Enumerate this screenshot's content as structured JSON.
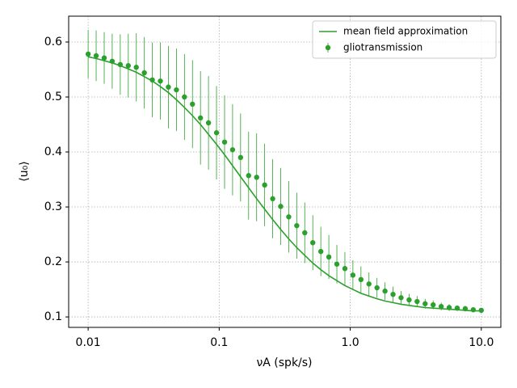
{
  "chart_data": {
    "type": "line",
    "xlabel": "νA (spk/s)",
    "ylabel": "⟨u₀⟩",
    "xscale": "log",
    "xlim": [
      0.0071,
      14.1
    ],
    "ylim": [
      0.081,
      0.647
    ],
    "xticks": [
      0.01,
      0.1,
      {
        "value": 1,
        "label": "1.0"
      },
      {
        "value": 10,
        "label": "10.0"
      }
    ],
    "yticks": [
      0.1,
      0.2,
      0.3,
      0.4,
      0.5,
      0.6
    ],
    "grid": true,
    "legend": "upper right",
    "x": [
      0.01,
      0.01151,
      0.01326,
      0.01526,
      0.01758,
      0.02024,
      0.0233,
      0.02683,
      0.03089,
      0.03556,
      0.04095,
      0.04715,
      0.05429,
      0.06251,
      0.07197,
      0.08286,
      0.09541,
      0.1099,
      0.1265,
      0.1456,
      0.1677,
      0.1931,
      0.2223,
      0.256,
      0.2947,
      0.3393,
      0.3907,
      0.4498,
      0.5179,
      0.5964,
      0.6866,
      0.7906,
      0.9103,
      1.048,
      1.207,
      1.389,
      1.6,
      1.842,
      2.121,
      2.442,
      2.812,
      3.237,
      3.728,
      4.292,
      4.942,
      5.69,
      6.551,
      7.543,
      8.685,
      10
    ],
    "series": [
      {
        "name": "mean field approximation",
        "kind": "line",
        "color": "#2ca02c",
        "values": [
          0.573,
          0.57,
          0.566,
          0.562,
          0.557,
          0.551,
          0.545,
          0.537,
          0.529,
          0.519,
          0.508,
          0.495,
          0.481,
          0.466,
          0.45,
          0.432,
          0.414,
          0.395,
          0.375,
          0.355,
          0.335,
          0.315,
          0.296,
          0.277,
          0.259,
          0.242,
          0.226,
          0.212,
          0.198,
          0.186,
          0.175,
          0.166,
          0.157,
          0.15,
          0.143,
          0.138,
          0.133,
          0.129,
          0.126,
          0.123,
          0.121,
          0.119,
          0.117,
          0.116,
          0.115,
          0.114,
          0.113,
          0.112,
          0.111,
          0.111
        ]
      },
      {
        "name": "gliotransmission",
        "kind": "errorbar",
        "color": "#2ca02c",
        "values": [
          0.578,
          0.575,
          0.571,
          0.565,
          0.559,
          0.557,
          0.554,
          0.544,
          0.531,
          0.529,
          0.518,
          0.513,
          0.5,
          0.487,
          0.462,
          0.453,
          0.435,
          0.418,
          0.404,
          0.39,
          0.357,
          0.354,
          0.34,
          0.315,
          0.301,
          0.282,
          0.266,
          0.253,
          0.235,
          0.219,
          0.209,
          0.196,
          0.188,
          0.176,
          0.168,
          0.16,
          0.153,
          0.147,
          0.141,
          0.135,
          0.131,
          0.128,
          0.124,
          0.122,
          0.119,
          0.117,
          0.116,
          0.115,
          0.113,
          0.112
        ],
        "errors": [
          0.044,
          0.046,
          0.047,
          0.05,
          0.055,
          0.058,
          0.062,
          0.065,
          0.068,
          0.07,
          0.075,
          0.075,
          0.078,
          0.08,
          0.085,
          0.085,
          0.085,
          0.085,
          0.083,
          0.08,
          0.08,
          0.08,
          0.075,
          0.072,
          0.07,
          0.065,
          0.06,
          0.055,
          0.05,
          0.045,
          0.04,
          0.035,
          0.03,
          0.027,
          0.024,
          0.021,
          0.018,
          0.016,
          0.014,
          0.012,
          0.011,
          0.01,
          0.009,
          0.008,
          0.007,
          0.006,
          0.005,
          0.005,
          0.004,
          0.004
        ]
      }
    ]
  }
}
